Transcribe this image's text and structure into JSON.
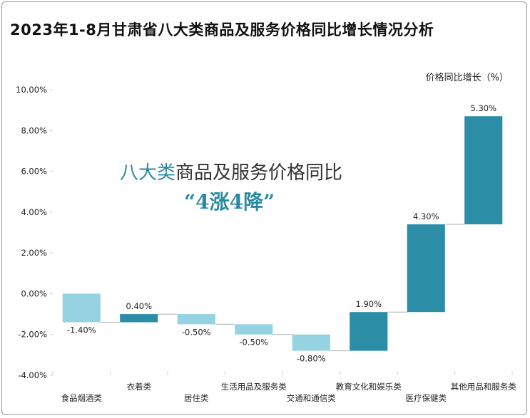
{
  "header": {
    "title": "2023年1-8月甘肃省八大类商品及服务价格同比增长情况分析",
    "unit_label": "价格同比增长（%）"
  },
  "annotation": {
    "line1_accent": "八大类",
    "line1_rest": "商品及服务价格同比",
    "line2": "“4涨4降”"
  },
  "colors": {
    "decrease": "#96d3e2",
    "increase": "#2b8ea6",
    "connector": "#b0b0b0",
    "gridline": "#d9d9d9"
  },
  "chart_data": {
    "type": "bar",
    "subtype": "waterfall",
    "categories": [
      "食品烟酒类",
      "衣着类",
      "居住类",
      "生活用品及服务类",
      "交通和通信类",
      "教育文化和娱乐类",
      "医疗保健类",
      "其他用品和服务类"
    ],
    "values": [
      -1.4,
      0.4,
      -0.5,
      -0.5,
      -0.8,
      1.9,
      4.3,
      5.3
    ],
    "value_labels": [
      "-1.40%",
      "0.40%",
      "-0.50%",
      "-0.50%",
      "-0.80%",
      "1.90%",
      "4.30%",
      "5.30%"
    ],
    "ylim": [
      -4,
      10
    ],
    "yticks": [
      -4,
      -2,
      0,
      2,
      4,
      6,
      8,
      10
    ],
    "ytick_labels": [
      "-4.00%",
      "-2.00%",
      "0.00%",
      "2.00%",
      "4.00%",
      "6.00%",
      "8.00%",
      "10.00%"
    ],
    "ylabel": "价格同比增长（%）",
    "xlabel": "",
    "legend": "none"
  }
}
